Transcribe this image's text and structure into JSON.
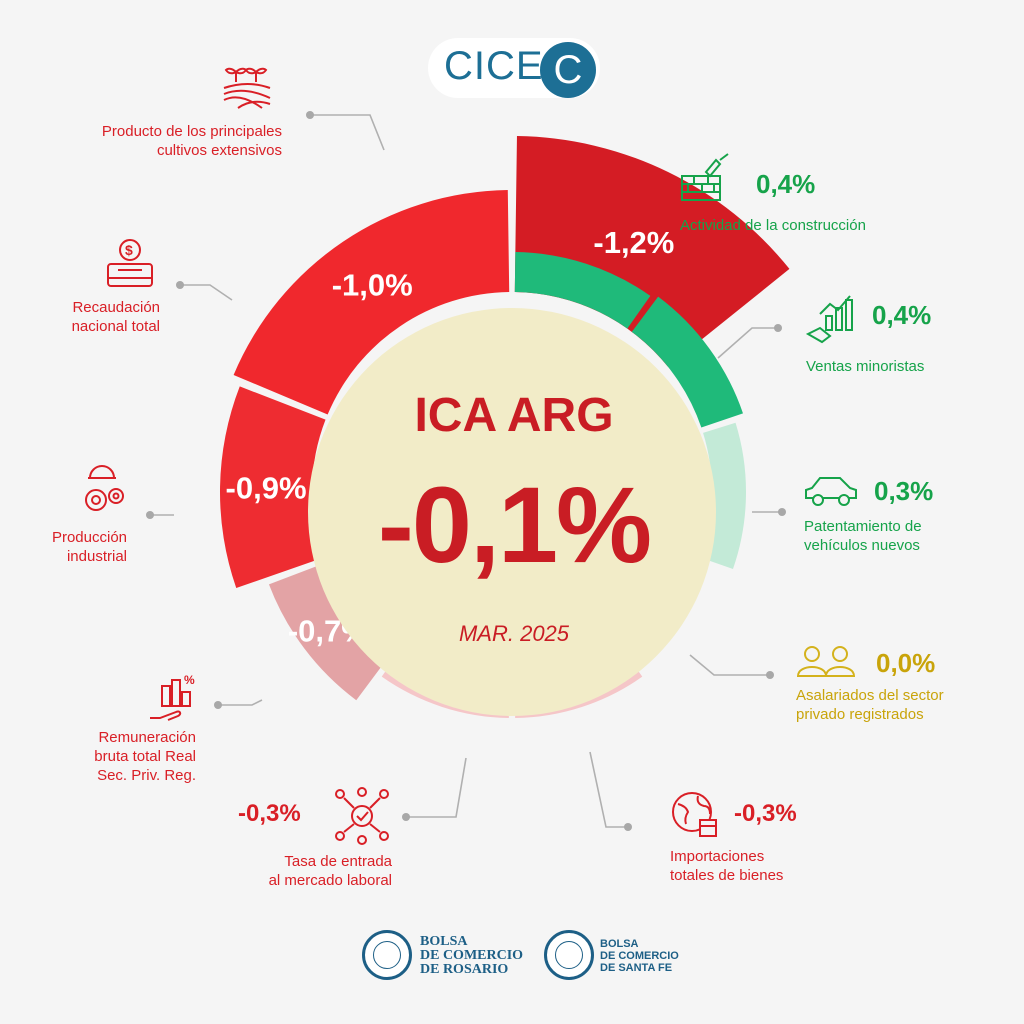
{
  "brand": {
    "logo_text": "CICE",
    "logo_badge": "C"
  },
  "center": {
    "title": "ICA ARG",
    "value": "-0,1%",
    "date": "MAR. 2025"
  },
  "colors": {
    "dark_red": "#d41c24",
    "red": "#f0282d",
    "mid_red": "#ee2c31",
    "pink": "#e3a3a5",
    "light_pink": "#f5c6c8",
    "green": "#1fba7a",
    "light_green": "#c3ead7",
    "gold": "#d4b21c",
    "center_fill": "#f2ecc8"
  },
  "chart_data": {
    "type": "radial-bar",
    "title": "ICA ARG",
    "overall": -0.1,
    "date": "MAR. 2025",
    "series": [
      {
        "name": "Producto de los principales cultivos extensivos",
        "value": -1.2,
        "label": "-1,2%"
      },
      {
        "name": "Recaudación nacional total",
        "value": -1.0,
        "label": "-1,0%"
      },
      {
        "name": "Producción industrial",
        "value": -0.9,
        "label": "-0,9%"
      },
      {
        "name": "Remuneración bruta total Real Sec. Priv. Reg.",
        "value": -0.7,
        "label": "-0,7%"
      },
      {
        "name": "Tasa de entrada al mercado laboral",
        "value": -0.3,
        "label": "-0,3%"
      },
      {
        "name": "Importaciones totales de bienes",
        "value": -0.3,
        "label": "-0,3%"
      },
      {
        "name": "Asalariados del sector privado registrados",
        "value": 0.0,
        "label": "0,0%"
      },
      {
        "name": "Patentamiento de vehículos nuevos",
        "value": 0.3,
        "label": "0,3%"
      },
      {
        "name": "Ventas minoristas",
        "value": 0.4,
        "label": "0,4%"
      },
      {
        "name": "Actividad de la construcción",
        "value": 0.4,
        "label": "0,4%"
      }
    ]
  },
  "labels": {
    "cultivos": {
      "text1": "Producto de los principales",
      "text2": "cultivos extensivos"
    },
    "recaudacion": {
      "text1": "Recaudación",
      "text2": "nacional total"
    },
    "industrial": {
      "text1": "Producción",
      "text2": "industrial"
    },
    "remuneracion": {
      "text1": "Remuneración",
      "text2": "bruta total Real",
      "text3": "Sec. Priv. Reg."
    },
    "tasa": {
      "value": "-0,3%",
      "text1": "Tasa de entrada",
      "text2": "al mercado laboral"
    },
    "importaciones": {
      "value": "-0,3%",
      "text1": "Importaciones",
      "text2": "totales de bienes"
    },
    "asalariados": {
      "value": "0,0%",
      "text1": "Asalariados del sector",
      "text2": "privado registrados"
    },
    "patentamiento": {
      "value": "0,3%",
      "text1": "Patentamiento de",
      "text2": "vehículos nuevos"
    },
    "ventas": {
      "value": "0,4%",
      "text1": "Ventas minoristas"
    },
    "construccion": {
      "value": "0,4%",
      "text1": "Actividad de la construcción"
    }
  },
  "footer": {
    "org1_line1": "BOLSA",
    "org1_line2": "DE COMERCIO",
    "org1_line3": "DE ROSARIO",
    "org2_line1": "BOLSA",
    "org2_line2": "DE COMERCIO",
    "org2_line3": "DE SANTA FE"
  }
}
